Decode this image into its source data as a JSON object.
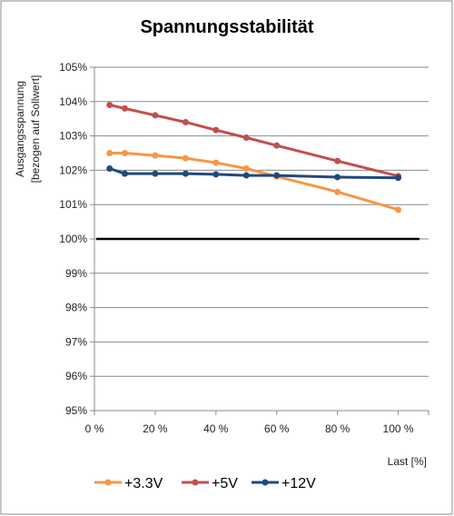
{
  "chart_data": {
    "type": "line",
    "title": "Spannungsstabilität",
    "ylabel_line1": "Ausgangsspannung",
    "ylabel_line2": "[bezogen auf Sollwert]",
    "xlabel": "Last [%]",
    "xlim": [
      0,
      110
    ],
    "ylim": [
      95,
      105
    ],
    "xticks": [
      0,
      20,
      40,
      60,
      80,
      100
    ],
    "xtick_labels": [
      "0 %",
      "20 %",
      "40 %",
      "60 %",
      "80 %",
      "100 %"
    ],
    "yticks": [
      95,
      96,
      97,
      98,
      99,
      100,
      101,
      102,
      103,
      104,
      105
    ],
    "ytick_labels": [
      "95%",
      "96%",
      "97%",
      "98%",
      "99%",
      "100%",
      "101%",
      "102%",
      "103%",
      "104%",
      "105%"
    ],
    "grid": "horizontal",
    "legend": "bottom",
    "reference_line": {
      "y": 100,
      "x": [
        0,
        107
      ],
      "color": "#000000"
    },
    "series": [
      {
        "name": "+3.3V",
        "color": "#f79646",
        "x": [
          5,
          10,
          20,
          30,
          40,
          50,
          60,
          80,
          100
        ],
        "y": [
          102.5,
          102.5,
          102.43,
          102.35,
          102.22,
          102.05,
          101.82,
          101.37,
          100.85
        ]
      },
      {
        "name": "+5V",
        "color": "#c0504d",
        "x": [
          5,
          10,
          20,
          30,
          40,
          50,
          60,
          80,
          100
        ],
        "y": [
          103.9,
          103.8,
          103.6,
          103.4,
          103.17,
          102.95,
          102.72,
          102.27,
          101.83
        ]
      },
      {
        "name": "+12V",
        "color": "#1f497d",
        "x": [
          5,
          10,
          20,
          30,
          40,
          50,
          60,
          80,
          100
        ],
        "y": [
          102.05,
          101.9,
          101.9,
          101.9,
          101.88,
          101.85,
          101.85,
          101.8,
          101.78
        ]
      }
    ]
  }
}
